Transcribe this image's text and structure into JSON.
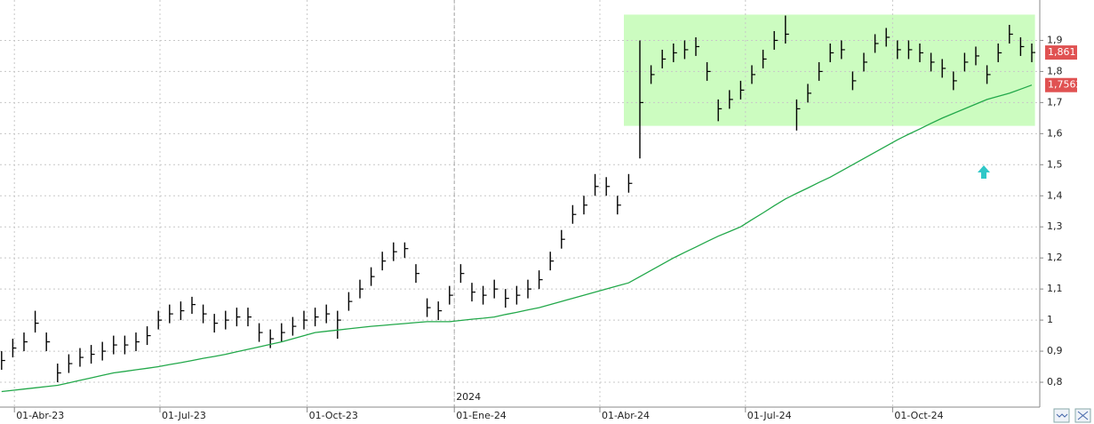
{
  "chart_data": {
    "type": "ohlc",
    "x": [
      "2023-03-24",
      "2023-03-31",
      "2023-04-07",
      "2023-04-14",
      "2023-04-21",
      "2023-04-28",
      "2023-05-05",
      "2023-05-12",
      "2023-05-19",
      "2023-05-26",
      "2023-06-02",
      "2023-06-09",
      "2023-06-16",
      "2023-06-23",
      "2023-06-30",
      "2023-07-07",
      "2023-07-14",
      "2023-07-21",
      "2023-07-28",
      "2023-08-04",
      "2023-08-11",
      "2023-08-18",
      "2023-08-25",
      "2023-09-01",
      "2023-09-08",
      "2023-09-15",
      "2023-09-22",
      "2023-09-29",
      "2023-10-06",
      "2023-10-13",
      "2023-10-20",
      "2023-10-27",
      "2023-11-03",
      "2023-11-10",
      "2023-11-17",
      "2023-11-24",
      "2023-12-01",
      "2023-12-08",
      "2023-12-15",
      "2023-12-22",
      "2023-12-29",
      "2024-01-05",
      "2024-01-12",
      "2024-01-19",
      "2024-01-26",
      "2024-02-02",
      "2024-02-09",
      "2024-02-16",
      "2024-02-23",
      "2024-03-01",
      "2024-03-08",
      "2024-03-15",
      "2024-03-22",
      "2024-03-29",
      "2024-04-05",
      "2024-04-12",
      "2024-04-19",
      "2024-04-26",
      "2024-05-03",
      "2024-05-10",
      "2024-05-17",
      "2024-05-24",
      "2024-05-31",
      "2024-06-07",
      "2024-06-14",
      "2024-06-21",
      "2024-06-28",
      "2024-07-05",
      "2024-07-12",
      "2024-07-19",
      "2024-07-26",
      "2024-08-02",
      "2024-08-09",
      "2024-08-16",
      "2024-08-23",
      "2024-08-30",
      "2024-09-06",
      "2024-09-13",
      "2024-09-20",
      "2024-09-27",
      "2024-10-04",
      "2024-10-11",
      "2024-10-18",
      "2024-10-25",
      "2024-11-01",
      "2024-11-08",
      "2024-11-15",
      "2024-11-22",
      "2024-11-29",
      "2024-12-06",
      "2024-12-13",
      "2024-12-20",
      "2024-12-27"
    ],
    "high": [
      0.9,
      0.94,
      0.96,
      1.03,
      0.96,
      0.86,
      0.89,
      0.91,
      0.92,
      0.93,
      0.95,
      0.95,
      0.96,
      0.98,
      1.03,
      1.05,
      1.06,
      1.075,
      1.05,
      1.02,
      1.03,
      1.04,
      1.04,
      0.99,
      0.97,
      0.99,
      1.01,
      1.03,
      1.04,
      1.05,
      1.03,
      1.09,
      1.13,
      1.17,
      1.22,
      1.25,
      1.25,
      1.18,
      1.07,
      1.06,
      1.11,
      1.18,
      1.12,
      1.11,
      1.13,
      1.1,
      1.11,
      1.13,
      1.16,
      1.22,
      1.29,
      1.37,
      1.4,
      1.47,
      1.46,
      1.4,
      1.47,
      1.9,
      1.82,
      1.87,
      1.89,
      1.9,
      1.91,
      1.83,
      1.71,
      1.74,
      1.77,
      1.82,
      1.87,
      1.93,
      1.98,
      1.71,
      1.76,
      1.83,
      1.89,
      1.9,
      1.8,
      1.86,
      1.92,
      1.94,
      1.9,
      1.9,
      1.89,
      1.86,
      1.84,
      1.8,
      1.86,
      1.88,
      1.82,
      1.89,
      1.95,
      1.91,
      1.89
    ],
    "low": [
      0.84,
      0.88,
      0.9,
      0.96,
      0.9,
      0.8,
      0.83,
      0.85,
      0.86,
      0.87,
      0.89,
      0.89,
      0.9,
      0.92,
      0.97,
      0.99,
      1.0,
      1.02,
      0.99,
      0.96,
      0.97,
      0.98,
      0.98,
      0.93,
      0.91,
      0.93,
      0.95,
      0.97,
      0.98,
      0.99,
      0.94,
      1.03,
      1.07,
      1.11,
      1.16,
      1.19,
      1.2,
      1.12,
      1.01,
      1.0,
      1.05,
      1.12,
      1.06,
      1.05,
      1.07,
      1.04,
      1.05,
      1.07,
      1.1,
      1.16,
      1.23,
      1.31,
      1.34,
      1.4,
      1.4,
      1.34,
      1.41,
      1.52,
      1.76,
      1.81,
      1.83,
      1.84,
      1.85,
      1.77,
      1.64,
      1.68,
      1.71,
      1.76,
      1.81,
      1.87,
      1.89,
      1.61,
      1.7,
      1.77,
      1.83,
      1.84,
      1.74,
      1.8,
      1.86,
      1.88,
      1.84,
      1.84,
      1.83,
      1.8,
      1.78,
      1.74,
      1.8,
      1.82,
      1.76,
      1.83,
      1.89,
      1.85,
      1.83
    ],
    "close": [
      0.87,
      0.91,
      0.93,
      0.99,
      0.93,
      0.83,
      0.86,
      0.88,
      0.89,
      0.9,
      0.92,
      0.92,
      0.93,
      0.95,
      1.0,
      1.02,
      1.03,
      1.05,
      1.02,
      0.99,
      1.0,
      1.01,
      1.01,
      0.96,
      0.94,
      0.96,
      0.98,
      1.0,
      1.01,
      1.02,
      1.0,
      1.06,
      1.1,
      1.14,
      1.19,
      1.22,
      1.23,
      1.15,
      1.04,
      1.03,
      1.08,
      1.15,
      1.09,
      1.08,
      1.1,
      1.07,
      1.08,
      1.1,
      1.13,
      1.19,
      1.26,
      1.34,
      1.37,
      1.43,
      1.43,
      1.37,
      1.44,
      1.7,
      1.79,
      1.84,
      1.86,
      1.87,
      1.88,
      1.8,
      1.68,
      1.71,
      1.74,
      1.79,
      1.84,
      1.9,
      1.92,
      1.68,
      1.73,
      1.8,
      1.86,
      1.87,
      1.77,
      1.83,
      1.89,
      1.91,
      1.87,
      1.87,
      1.86,
      1.83,
      1.81,
      1.77,
      1.83,
      1.85,
      1.79,
      1.86,
      1.92,
      1.88,
      1.861
    ],
    "color": "#000000",
    "close_label": "1,861",
    "label_color": "#e05252",
    "moving_average": {
      "color": "#22a84a",
      "label": "1,7562",
      "values": [
        0.77,
        0.774,
        0.778,
        0.782,
        0.786,
        0.79,
        0.798,
        0.806,
        0.814,
        0.822,
        0.83,
        0.835,
        0.84,
        0.845,
        0.85,
        0.857,
        0.863,
        0.87,
        0.877,
        0.883,
        0.89,
        0.898,
        0.906,
        0.914,
        0.922,
        0.93,
        0.94,
        0.95,
        0.96,
        0.964,
        0.968,
        0.972,
        0.976,
        0.98,
        0.983,
        0.986,
        0.989,
        0.992,
        0.995,
        0.995,
        0.995,
        0.999,
        1.003,
        1.006,
        1.01,
        1.018,
        1.025,
        1.033,
        1.04,
        1.05,
        1.06,
        1.07,
        1.08,
        1.09,
        1.1,
        1.11,
        1.12,
        1.14,
        1.16,
        1.18,
        1.2,
        1.218,
        1.235,
        1.253,
        1.27,
        1.285,
        1.3,
        1.323,
        1.345,
        1.368,
        1.39,
        1.408,
        1.425,
        1.443,
        1.46,
        1.48,
        1.5,
        1.52,
        1.54,
        1.56,
        1.58,
        1.598,
        1.615,
        1.633,
        1.65,
        1.665,
        1.68,
        1.695,
        1.71,
        1.72,
        1.73,
        1.743,
        1.7562
      ]
    },
    "range_box": {
      "x": [
        "2024-04-16",
        "2024-12-29"
      ],
      "y": [
        1.625,
        1.983
      ],
      "color": "#ccfcc0"
    },
    "year_marker": {
      "x": "2024-01-01",
      "label": "2024"
    },
    "xlim": [
      "2023-03-23",
      "2025-01-01"
    ],
    "xticks": [
      {
        "value": "2023-04-01",
        "label": "01-Abr-23"
      },
      {
        "value": "2023-07-01",
        "label": "01-Jul-23"
      },
      {
        "value": "2023-10-01",
        "label": "01-Oct-23"
      },
      {
        "value": "2024-01-01",
        "label": "01-Ene-24"
      },
      {
        "value": "2024-04-01",
        "label": "01-Abr-24"
      },
      {
        "value": "2024-07-01",
        "label": "01-Jul-24"
      },
      {
        "value": "2024-10-01",
        "label": "01-Oct-24"
      }
    ],
    "ylim": [
      0.72,
      2.03
    ],
    "yticks": [
      {
        "value": 0.8,
        "label": "0,8"
      },
      {
        "value": 0.9,
        "label": "0,9"
      },
      1,
      {
        "value": 1.1,
        "label": "1,1"
      },
      {
        "value": 1.2,
        "label": "1,2"
      },
      {
        "value": 1.3,
        "label": "1,3"
      },
      {
        "value": 1.4,
        "label": "1,4"
      },
      {
        "value": 1.5,
        "label": "1,5"
      },
      {
        "value": 1.6,
        "label": "1,6"
      },
      {
        "value": 1.7,
        "label": "1,7"
      },
      {
        "value": 1.8,
        "label": "1,8"
      },
      {
        "value": 1.9,
        "label": "1,9"
      }
    ],
    "grid": true
  }
}
